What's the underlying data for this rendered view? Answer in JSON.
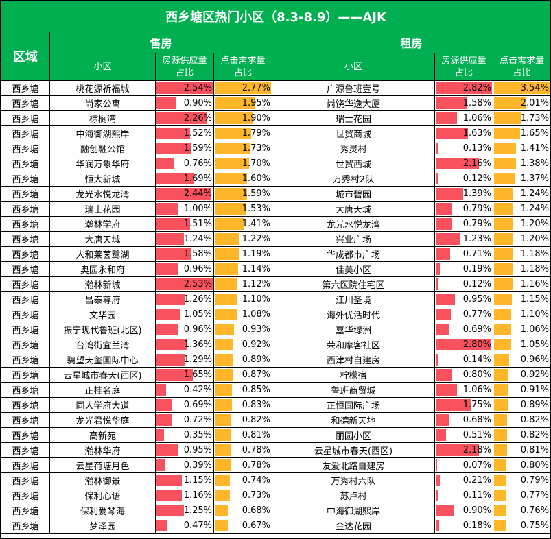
{
  "title": "西乡塘区热门小区（8.3-8.9）——AJK",
  "colors": {
    "header_green": "#00b050",
    "supply_bar": "#f8525e",
    "demand_bar": "#ffb628"
  },
  "headers": {
    "region": "区域",
    "sale": "售房",
    "rent": "租房",
    "community": "小区",
    "supply_line1": "房源供应量",
    "supply_line2": "占比",
    "demand_line1": "点击需求量",
    "demand_line2": "占比"
  },
  "scale_max": {
    "sale_supply": 2.54,
    "sale_demand": 2.77,
    "rent_supply": 2.82,
    "rent_demand": 3.54
  },
  "rows": [
    {
      "region": "西乡塘",
      "sale_name": "桃花源祈福城",
      "sale_supply": "2.54%",
      "sale_demand": "2.77%",
      "rent_name": "广源鲁班壹号",
      "rent_supply": "2.82%",
      "rent_demand": "3.54%"
    },
    {
      "region": "西乡塘",
      "sale_name": "尚家公寓",
      "sale_supply": "0.90%",
      "sale_demand": "1.95%",
      "rent_name": "尚饶华逸大厦",
      "rent_supply": "1.58%",
      "rent_demand": "2.01%"
    },
    {
      "region": "西乡塘",
      "sale_name": "棕榈湾",
      "sale_supply": "2.26%",
      "sale_demand": "1.90%",
      "rent_name": "瑞士花园",
      "rent_supply": "1.06%",
      "rent_demand": "1.73%"
    },
    {
      "region": "西乡塘",
      "sale_name": "中海御湖熙岸",
      "sale_supply": "1.52%",
      "sale_demand": "1.79%",
      "rent_name": "世贸商城",
      "rent_supply": "1.63%",
      "rent_demand": "1.65%"
    },
    {
      "region": "西乡塘",
      "sale_name": "融创融公馆",
      "sale_supply": "1.59%",
      "sale_demand": "1.73%",
      "rent_name": "秀灵村",
      "rent_supply": "0.13%",
      "rent_demand": "1.41%"
    },
    {
      "region": "西乡塘",
      "sale_name": "华润万象华府",
      "sale_supply": "0.76%",
      "sale_demand": "1.70%",
      "rent_name": "世贸西城",
      "rent_supply": "2.16%",
      "rent_demand": "1.38%"
    },
    {
      "region": "西乡塘",
      "sale_name": "恒大新城",
      "sale_supply": "1.69%",
      "sale_demand": "1.60%",
      "rent_name": "万秀村2队",
      "rent_supply": "0.12%",
      "rent_demand": "1.37%"
    },
    {
      "region": "西乡塘",
      "sale_name": "龙光水悦龙湾",
      "sale_supply": "2.44%",
      "sale_demand": "1.59%",
      "rent_name": "城市碧园",
      "rent_supply": "1.39%",
      "rent_demand": "1.24%"
    },
    {
      "region": "西乡塘",
      "sale_name": "瑞士花园",
      "sale_supply": "1.00%",
      "sale_demand": "1.53%",
      "rent_name": "大唐天城",
      "rent_supply": "0.79%",
      "rent_demand": "1.24%"
    },
    {
      "region": "西乡塘",
      "sale_name": "瀚林学府",
      "sale_supply": "1.51%",
      "sale_demand": "1.41%",
      "rent_name": "龙光水悦龙湾",
      "rent_supply": "0.79%",
      "rent_demand": "1.20%"
    },
    {
      "region": "西乡塘",
      "sale_name": "大唐天城",
      "sale_supply": "1.24%",
      "sale_demand": "1.22%",
      "rent_name": "兴业广场",
      "rent_supply": "1.23%",
      "rent_demand": "1.20%"
    },
    {
      "region": "西乡塘",
      "sale_name": "人和莱茵鹭湖",
      "sale_supply": "1.58%",
      "sale_demand": "1.19%",
      "rent_name": "华成都市广场",
      "rent_supply": "0.71%",
      "rent_demand": "1.18%"
    },
    {
      "region": "西乡塘",
      "sale_name": "奥园永和府",
      "sale_supply": "0.96%",
      "sale_demand": "1.14%",
      "rent_name": "佳美小区",
      "rent_supply": "0.19%",
      "rent_demand": "1.18%"
    },
    {
      "region": "西乡塘",
      "sale_name": "瀚林新城",
      "sale_supply": "2.53%",
      "sale_demand": "1.12%",
      "rent_name": "第六医院住宅区",
      "rent_supply": "0.12%",
      "rent_demand": "1.16%"
    },
    {
      "region": "西乡塘",
      "sale_name": "昌泰尊府",
      "sale_supply": "1.26%",
      "sale_demand": "1.10%",
      "rent_name": "江川圣境",
      "rent_supply": "0.95%",
      "rent_demand": "1.15%"
    },
    {
      "region": "西乡塘",
      "sale_name": "文华园",
      "sale_supply": "1.05%",
      "sale_demand": "1.08%",
      "rent_name": "海外优活时代",
      "rent_supply": "0.77%",
      "rent_demand": "1.10%"
    },
    {
      "region": "西乡塘",
      "sale_name": "振宁现代鲁班(北区)",
      "sale_supply": "0.96%",
      "sale_demand": "0.93%",
      "rent_name": "嘉华绿洲",
      "rent_supply": "0.69%",
      "rent_demand": "1.06%"
    },
    {
      "region": "西乡塘",
      "sale_name": "台湾街宜兰湾",
      "sale_supply": "1.36%",
      "sale_demand": "0.92%",
      "rent_name": "荣和摩客社区",
      "rent_supply": "2.80%",
      "rent_demand": "1.05%"
    },
    {
      "region": "西乡塘",
      "sale_name": "骋望天玺国际中心",
      "sale_supply": "1.29%",
      "sale_demand": "0.89%",
      "rent_name": "西津村自建房",
      "rent_supply": "0.14%",
      "rent_demand": "0.96%"
    },
    {
      "region": "西乡塘",
      "sale_name": "云星城市春天(西区)",
      "sale_supply": "1.65%",
      "sale_demand": "0.87%",
      "rent_name": "柠檬宿",
      "rent_supply": "0.80%",
      "rent_demand": "0.92%"
    },
    {
      "region": "西乡塘",
      "sale_name": "正桂名庭",
      "sale_supply": "0.42%",
      "sale_demand": "0.85%",
      "rent_name": "鲁班商贸城",
      "rent_supply": "1.06%",
      "rent_demand": "0.91%"
    },
    {
      "region": "西乡塘",
      "sale_name": "同人学府大道",
      "sale_supply": "0.69%",
      "sale_demand": "0.83%",
      "rent_name": "正恒国际广场",
      "rent_supply": "1.75%",
      "rent_demand": "0.89%"
    },
    {
      "region": "西乡塘",
      "sale_name": "龙光君悦华庭",
      "sale_supply": "0.72%",
      "sale_demand": "0.82%",
      "rent_name": "和德新天地",
      "rent_supply": "0.68%",
      "rent_demand": "0.82%"
    },
    {
      "region": "西乡塘",
      "sale_name": "高新苑",
      "sale_supply": "0.35%",
      "sale_demand": "0.81%",
      "rent_name": "丽园小区",
      "rent_supply": "0.51%",
      "rent_demand": "0.82%"
    },
    {
      "region": "西乡塘",
      "sale_name": "瀚林华府",
      "sale_supply": "0.95%",
      "sale_demand": "0.78%",
      "rent_name": "云星城市春天(西区)",
      "rent_supply": "2.18%",
      "rent_demand": "0.81%"
    },
    {
      "region": "西乡塘",
      "sale_name": "云星荷塘月色",
      "sale_supply": "0.39%",
      "sale_demand": "0.78%",
      "rent_name": "友爱北路自建房",
      "rent_supply": "0.07%",
      "rent_demand": "0.80%"
    },
    {
      "region": "西乡塘",
      "sale_name": "瀚林御景",
      "sale_supply": "1.15%",
      "sale_demand": "0.74%",
      "rent_name": "万秀村六队",
      "rent_supply": "0.21%",
      "rent_demand": "0.79%"
    },
    {
      "region": "西乡塘",
      "sale_name": "保利心语",
      "sale_supply": "1.16%",
      "sale_demand": "0.73%",
      "rent_name": "苏卢村",
      "rent_supply": "0.11%",
      "rent_demand": "0.77%"
    },
    {
      "region": "西乡塘",
      "sale_name": "保利爱琴海",
      "sale_supply": "1.25%",
      "sale_demand": "0.68%",
      "rent_name": "中海御湖熙岸",
      "rent_supply": "0.90%",
      "rent_demand": "0.76%"
    },
    {
      "region": "西乡塘",
      "sale_name": "梦泽园",
      "sale_supply": "0.47%",
      "sale_demand": "0.67%",
      "rent_name": "金达花园",
      "rent_supply": "0.18%",
      "rent_demand": "0.75%"
    }
  ]
}
